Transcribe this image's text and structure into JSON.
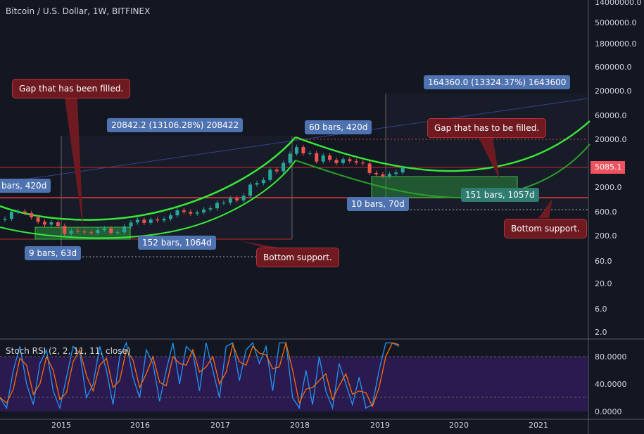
{
  "header": {
    "title": "Bitcoin / U.S. Dollar, 1W, BITFINEX"
  },
  "price_axis": {
    "ticks": [
      "14000000.0",
      "5000000.0",
      "1800000.0",
      "600000.0",
      "200000.0",
      "60000.0",
      "20000.0",
      "2000.0",
      "600.0",
      "200.0",
      "60.0",
      "20.0",
      "6.0",
      "2.0"
    ],
    "last_price": "5085.1",
    "last_price_color": "#ef5360",
    "scale": "log"
  },
  "rsi_axis": {
    "ticks": [
      "80.0000",
      "40.0000",
      "0.0000"
    ]
  },
  "time_axis": {
    "ticks": [
      "2015",
      "2016",
      "2017",
      "2018",
      "2019",
      "2020",
      "2021"
    ]
  },
  "indicator": {
    "label": "Stoch RSI (2, 2, 11, 11, close)",
    "band_color": "#2a1a4f"
  },
  "annotations": {
    "gap_filled": "Gap that has been filled.",
    "measure1": "20842.2 (13106.28%) 208422",
    "bars_left": "bars, 420d",
    "bars_9": "9 bars, 63d",
    "bars_152": "152 bars, 1064d",
    "bottom_support_1": "Bottom support.",
    "bars_60": "60 bars, 420d",
    "measure2": "164360.0 (13324.37%) 1643600",
    "gap_to_fill": "Gap that has to be filled.",
    "bars_10": "10 bars, 70d",
    "bars_151": "151 bars, 1057d",
    "bottom_support_2": "Bottom support."
  },
  "chart_data": {
    "type": "candlestick",
    "interval": "1W",
    "start": "2014-04",
    "monthly_close": [
      450,
      630,
      640,
      590,
      480,
      390,
      340,
      380,
      320,
      220,
      255,
      245,
      236,
      230,
      263,
      285,
      230,
      236,
      314,
      377,
      430,
      370,
      437,
      416,
      448,
      531,
      673,
      624,
      575,
      608,
      700,
      742,
      963,
      970,
      1190,
      1080,
      1350,
      2300,
      2480,
      2875,
      4700,
      4340,
      6450,
      10000,
      13800,
      10200,
      10300,
      6900,
      9250,
      7500,
      6400,
      7730,
      7030,
      6630,
      6300,
      4000,
      3750,
      3450,
      3820,
      4100,
      5085
    ],
    "stoch_rsi": [
      20,
      5,
      60,
      95,
      40,
      10,
      70,
      90,
      30,
      5,
      50,
      95,
      85,
      20,
      40,
      95,
      60,
      10,
      80,
      100,
      50,
      20,
      90,
      70,
      15,
      60,
      100,
      40,
      95,
      85,
      30,
      100,
      60,
      20,
      95,
      100,
      45,
      90,
      100,
      70,
      95,
      30,
      100,
      100,
      20,
      5,
      60,
      10,
      80,
      30,
      5,
      70,
      40,
      10,
      50,
      5,
      10,
      60,
      100,
      100,
      95
    ],
    "colors": {
      "up": "#26a69a",
      "down": "#ef5350",
      "arc": "#39e639",
      "arc_dark": "#2aa02a"
    }
  }
}
